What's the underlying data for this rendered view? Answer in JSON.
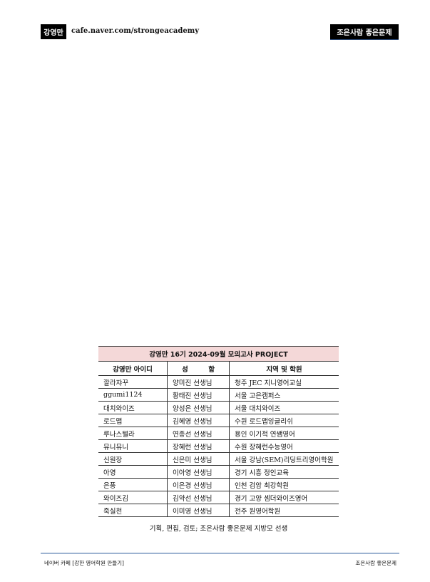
{
  "header": {
    "brand": "강영만",
    "url": "cafe.naver.com/strongeacademy",
    "right_label": "조은사람 좋은문제"
  },
  "table": {
    "title": "강영만 16기 2024-09월 모의고사 PROJECT",
    "columns": [
      "강영만 아이디",
      "성　　　함",
      "지역 및 학원"
    ],
    "rows": [
      [
        "깔라쟈꾸",
        "양미진 선생님",
        "청주 JEC 지니영어교실"
      ],
      [
        "ggumi1124",
        "황태진 선생님",
        "서울 고은캠퍼스"
      ],
      [
        "대치와이즈",
        "양성은 선생님",
        "서울 대치와이즈"
      ],
      [
        "로드맵",
        "김혜영 선생님",
        "수원 로드맵잉글리쉬"
      ],
      [
        "루나스텔라",
        "연종선 선생님",
        "용인 이기적 연쌤영어"
      ],
      [
        "뮤니뮤니",
        "장혜런 선생님",
        "수원 장혜런수능영어"
      ],
      [
        "신원장",
        "신은미 선생님",
        "서울 강남(SEM)리딩트리영어학원"
      ],
      [
        "아영",
        "이아영 선생님",
        "경기 시흥 정인교육"
      ],
      [
        "은풍",
        "이은경 선생님",
        "인천 검암 최강학원"
      ],
      [
        "와이즈김",
        "김약선 선생님",
        "경기 고양 셈더와이즈영어"
      ],
      [
        "죽실천",
        "이미영 선생님",
        "전주 원영어학원"
      ]
    ]
  },
  "credit": "기획, 편집, 검토; 조은사람 좋은문제 지방모 선생",
  "footer": {
    "left": "네이버 카페 [강한 영어학원 만들기]",
    "right": "조은사람 좋은문제"
  }
}
